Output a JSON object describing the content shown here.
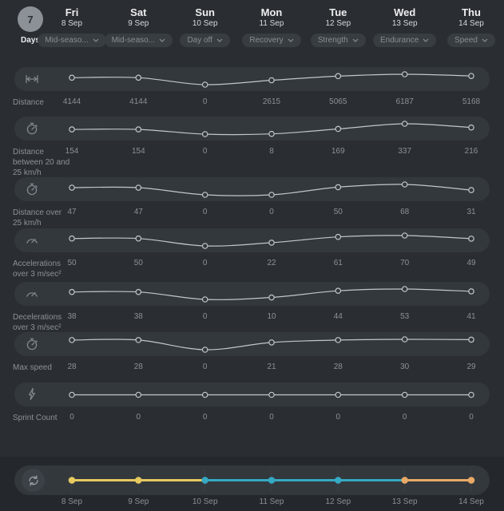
{
  "period": {
    "count": "7",
    "unit": "Days"
  },
  "days": [
    {
      "name": "Fri",
      "date": "8 Sep",
      "session": "Mid-seaso..."
    },
    {
      "name": "Sat",
      "date": "9 Sep",
      "session": "Mid-seaso..."
    },
    {
      "name": "Sun",
      "date": "10 Sep",
      "session": "Day off"
    },
    {
      "name": "Mon",
      "date": "11 Sep",
      "session": "Recovery"
    },
    {
      "name": "Tue",
      "date": "12 Sep",
      "session": "Strength"
    },
    {
      "name": "Wed",
      "date": "13 Sep",
      "session": "Endurance"
    },
    {
      "name": "Thu",
      "date": "14 Sep",
      "session": "Speed"
    }
  ],
  "metrics": [
    {
      "label": "Distance",
      "icon": "distance-icon",
      "values": [
        4144,
        4144,
        0,
        2615,
        5065,
        6187,
        5168
      ]
    },
    {
      "label": "Distance between 20 and 25 km/h",
      "icon": "stopwatch-20-icon",
      "values": [
        154,
        154,
        0,
        8,
        169,
        337,
        216
      ]
    },
    {
      "label": "Distance over 25 km/h",
      "icon": "stopwatch-25-icon",
      "values": [
        47,
        47,
        0,
        0,
        50,
        68,
        31
      ]
    },
    {
      "label": "Accelerations over 3 m/sec²",
      "icon": "acceleration-gauge-icon",
      "values": [
        50,
        50,
        0,
        22,
        61,
        70,
        49
      ]
    },
    {
      "label": "Decelerations over 3 m/sec²",
      "icon": "deceleration-gauge-icon",
      "values": [
        38,
        38,
        0,
        10,
        44,
        53,
        41
      ]
    },
    {
      "label": "Max speed",
      "icon": "stopwatch-icon",
      "values": [
        28,
        28,
        0,
        21,
        28,
        30,
        29
      ]
    },
    {
      "label": "Sprint Count",
      "icon": "lightning-icon",
      "values": [
        0,
        0,
        0,
        0,
        0,
        0,
        0
      ]
    }
  ],
  "timeline": {
    "dates": [
      "8 Sep",
      "9 Sep",
      "10 Sep",
      "11 Sep",
      "12 Sep",
      "13 Sep",
      "14 Sep"
    ],
    "dot_colors": [
      "#e6c95f",
      "#e6c95f",
      "#36a9c3",
      "#36a9c3",
      "#36a9c3",
      "#e9a967",
      "#e9a967"
    ]
  },
  "colors": {
    "background": "#2a2e32",
    "row_pill": "#33383d",
    "bottom_strip": "#24282c",
    "sparkline": "#c2c6c9",
    "text_light": "#eceeef",
    "text_muted": "#8b9197",
    "yellow": "#e6c95f",
    "teal": "#36a9c3",
    "orange": "#e9a967"
  },
  "chart_data": [
    {
      "type": "line",
      "title": "Distance",
      "x": [
        "8 Sep",
        "9 Sep",
        "10 Sep",
        "11 Sep",
        "12 Sep",
        "13 Sep",
        "14 Sep"
      ],
      "values": [
        4144,
        4144,
        0,
        2615,
        5065,
        6187,
        5168
      ]
    },
    {
      "type": "line",
      "title": "Distance between 20 and 25 km/h",
      "x": [
        "8 Sep",
        "9 Sep",
        "10 Sep",
        "11 Sep",
        "12 Sep",
        "13 Sep",
        "14 Sep"
      ],
      "values": [
        154,
        154,
        0,
        8,
        169,
        337,
        216
      ]
    },
    {
      "type": "line",
      "title": "Distance over 25 km/h",
      "x": [
        "8 Sep",
        "9 Sep",
        "10 Sep",
        "11 Sep",
        "12 Sep",
        "13 Sep",
        "14 Sep"
      ],
      "values": [
        47,
        47,
        0,
        0,
        50,
        68,
        31
      ]
    },
    {
      "type": "line",
      "title": "Accelerations over 3 m/sec²",
      "x": [
        "8 Sep",
        "9 Sep",
        "10 Sep",
        "11 Sep",
        "12 Sep",
        "13 Sep",
        "14 Sep"
      ],
      "values": [
        50,
        50,
        0,
        22,
        61,
        70,
        49
      ]
    },
    {
      "type": "line",
      "title": "Decelerations over 3 m/sec²",
      "x": [
        "8 Sep",
        "9 Sep",
        "10 Sep",
        "11 Sep",
        "12 Sep",
        "13 Sep",
        "14 Sep"
      ],
      "values": [
        38,
        38,
        0,
        10,
        44,
        53,
        41
      ]
    },
    {
      "type": "line",
      "title": "Max speed",
      "x": [
        "8 Sep",
        "9 Sep",
        "10 Sep",
        "11 Sep",
        "12 Sep",
        "13 Sep",
        "14 Sep"
      ],
      "values": [
        28,
        28,
        0,
        21,
        28,
        30,
        29
      ]
    },
    {
      "type": "line",
      "title": "Sprint Count",
      "x": [
        "8 Sep",
        "9 Sep",
        "10 Sep",
        "11 Sep",
        "12 Sep",
        "13 Sep",
        "14 Sep"
      ],
      "values": [
        0,
        0,
        0,
        0,
        0,
        0,
        0
      ]
    }
  ]
}
